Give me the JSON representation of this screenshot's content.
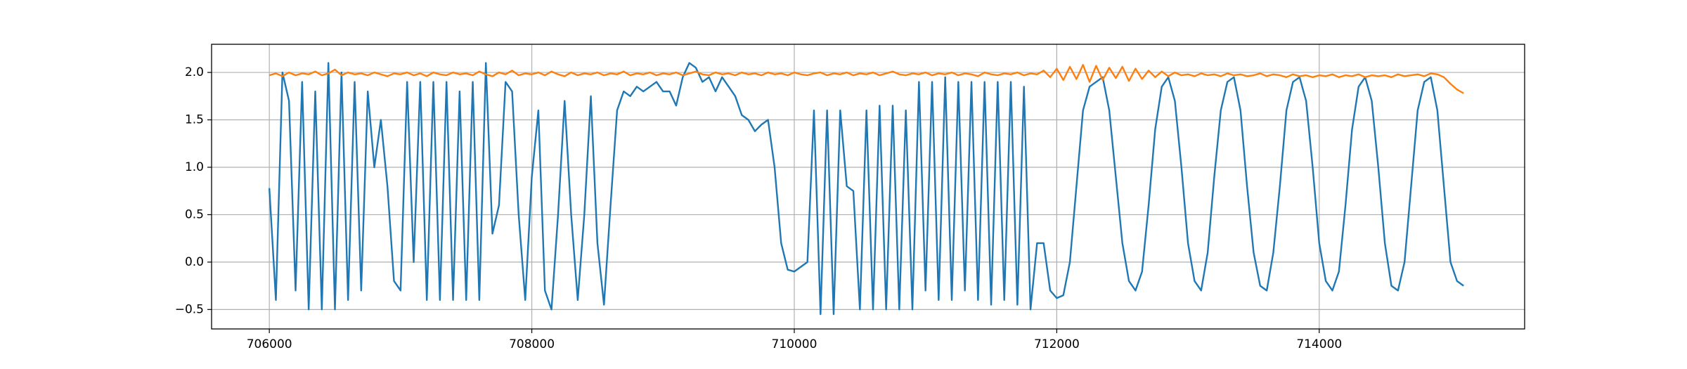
{
  "chart_data": {
    "type": "line",
    "x": [
      706000,
      706050,
      706100,
      706150,
      706200,
      706250,
      706300,
      706350,
      706400,
      706450,
      706500,
      706550,
      706600,
      706650,
      706700,
      706750,
      706800,
      706850,
      706900,
      706950,
      707000,
      707050,
      707100,
      707150,
      707200,
      707250,
      707300,
      707350,
      707400,
      707450,
      707500,
      707550,
      707600,
      707650,
      707700,
      707750,
      707800,
      707850,
      707900,
      707950,
      708000,
      708050,
      708100,
      708150,
      708200,
      708250,
      708300,
      708350,
      708400,
      708450,
      708500,
      708550,
      708600,
      708650,
      708700,
      708750,
      708800,
      708850,
      708900,
      708950,
      709000,
      709050,
      709100,
      709150,
      709200,
      709250,
      709300,
      709350,
      709400,
      709450,
      709500,
      709550,
      709600,
      709650,
      709700,
      709750,
      709800,
      709850,
      709900,
      709950,
      710000,
      710050,
      710100,
      710150,
      710200,
      710250,
      710300,
      710350,
      710400,
      710450,
      710500,
      710550,
      710600,
      710650,
      710700,
      710750,
      710800,
      710850,
      710900,
      710950,
      711000,
      711050,
      711100,
      711150,
      711200,
      711250,
      711300,
      711350,
      711400,
      711450,
      711500,
      711550,
      711600,
      711650,
      711700,
      711750,
      711800,
      711850,
      711900,
      711950,
      712000,
      712050,
      712100,
      712150,
      712200,
      712250,
      712300,
      712350,
      712400,
      712450,
      712500,
      712550,
      712600,
      712650,
      712700,
      712750,
      712800,
      712850,
      712900,
      712950,
      713000,
      713050,
      713100,
      713150,
      713200,
      713250,
      713300,
      713350,
      713400,
      713450,
      713500,
      713550,
      713600,
      713650,
      713700,
      713750,
      713800,
      713850,
      713900,
      713950,
      714000,
      714050,
      714100,
      714150,
      714200,
      714250,
      714300,
      714350,
      714400,
      714450,
      714500,
      714550,
      714600,
      714650,
      714700,
      714750,
      714800,
      714850,
      714900,
      714950,
      715000,
      715050,
      715100
    ],
    "series": [
      {
        "color": "#1f77b4",
        "values": [
          0.78,
          -0.4,
          2.0,
          1.7,
          -0.3,
          1.9,
          -0.5,
          1.8,
          -0.5,
          2.1,
          -0.5,
          2.0,
          -0.4,
          1.9,
          -0.3,
          1.8,
          1.0,
          1.5,
          0.8,
          -0.2,
          -0.3,
          1.9,
          0.0,
          1.9,
          -0.4,
          1.9,
          -0.4,
          1.9,
          -0.4,
          1.8,
          -0.4,
          1.9,
          -0.4,
          2.1,
          0.3,
          0.6,
          1.9,
          1.8,
          0.5,
          -0.4,
          0.9,
          1.6,
          -0.3,
          -0.5,
          0.5,
          1.7,
          0.5,
          -0.4,
          0.5,
          1.75,
          0.2,
          -0.45,
          0.6,
          1.6,
          1.8,
          1.75,
          1.85,
          1.8,
          1.85,
          1.9,
          1.8,
          1.8,
          1.65,
          1.95,
          2.1,
          2.05,
          1.9,
          1.95,
          1.8,
          1.95,
          1.85,
          1.75,
          1.55,
          1.5,
          1.38,
          1.45,
          1.5,
          1.0,
          0.2,
          -0.08,
          -0.1,
          -0.05,
          0.0,
          1.6,
          -0.55,
          1.6,
          -0.55,
          1.6,
          0.8,
          0.75,
          -0.5,
          1.6,
          -0.5,
          1.65,
          -0.5,
          1.65,
          -0.5,
          1.6,
          -0.5,
          1.9,
          -0.3,
          1.9,
          -0.4,
          1.95,
          -0.4,
          1.9,
          -0.3,
          1.9,
          -0.4,
          1.9,
          -0.45,
          1.9,
          -0.4,
          1.9,
          -0.45,
          1.85,
          -0.5,
          0.2,
          0.2,
          -0.3,
          -0.38,
          -0.35,
          0.0,
          0.8,
          1.6,
          1.85,
          1.9,
          1.95,
          1.6,
          0.9,
          0.2,
          -0.2,
          -0.3,
          -0.1,
          0.6,
          1.4,
          1.85,
          1.95,
          1.7,
          1.0,
          0.2,
          -0.2,
          -0.3,
          0.1,
          0.9,
          1.6,
          1.9,
          1.95,
          1.6,
          0.8,
          0.1,
          -0.25,
          -0.3,
          0.1,
          0.8,
          1.6,
          1.9,
          1.95,
          1.7,
          1.0,
          0.2,
          -0.2,
          -0.3,
          -0.1,
          0.6,
          1.4,
          1.85,
          1.95,
          1.7,
          1.0,
          0.2,
          -0.25,
          -0.3,
          0.0,
          0.8,
          1.6,
          1.9,
          1.95,
          1.6,
          0.8,
          0.0,
          -0.2,
          -0.25
        ]
      },
      {
        "color": "#ff7f0e",
        "values": [
          1.97,
          1.99,
          1.96,
          2.0,
          1.97,
          1.99,
          1.98,
          2.01,
          1.97,
          1.99,
          2.03,
          1.97,
          2.0,
          1.98,
          1.99,
          1.97,
          2.0,
          1.98,
          1.96,
          1.99,
          1.98,
          2.0,
          1.97,
          1.99,
          1.96,
          2.0,
          1.98,
          1.97,
          2.0,
          1.98,
          1.99,
          1.97,
          2.01,
          1.98,
          1.96,
          2.0,
          1.98,
          2.02,
          1.97,
          1.99,
          1.98,
          2.0,
          1.97,
          2.01,
          1.98,
          1.96,
          2.0,
          1.97,
          1.99,
          1.98,
          2.0,
          1.97,
          1.99,
          1.98,
          2.01,
          1.97,
          1.99,
          1.98,
          2.0,
          1.97,
          1.99,
          1.98,
          2.0,
          1.97,
          1.99,
          2.01,
          1.98,
          1.97,
          2.0,
          1.98,
          1.99,
          1.97,
          2.0,
          1.98,
          1.99,
          1.97,
          2.0,
          1.98,
          1.99,
          1.97,
          2.0,
          1.98,
          1.97,
          1.99,
          2.0,
          1.97,
          1.99,
          1.98,
          2.0,
          1.97,
          1.99,
          1.98,
          2.0,
          1.97,
          1.99,
          2.01,
          1.98,
          1.97,
          1.99,
          1.98,
          2.0,
          1.97,
          1.99,
          1.98,
          2.0,
          1.97,
          1.99,
          1.98,
          1.96,
          2.0,
          1.98,
          1.97,
          1.99,
          1.98,
          2.0,
          1.97,
          1.99,
          1.98,
          2.02,
          1.95,
          2.04,
          1.92,
          2.06,
          1.93,
          2.08,
          1.9,
          2.07,
          1.92,
          2.05,
          1.94,
          2.06,
          1.91,
          2.04,
          1.93,
          2.02,
          1.95,
          2.01,
          1.96,
          2.0,
          1.97,
          1.98,
          1.96,
          1.99,
          1.97,
          1.98,
          1.96,
          1.99,
          1.97,
          1.98,
          1.96,
          1.97,
          1.99,
          1.96,
          1.98,
          1.97,
          1.95,
          1.98,
          1.96,
          1.97,
          1.95,
          1.97,
          1.96,
          1.98,
          1.95,
          1.97,
          1.96,
          1.98,
          1.95,
          1.97,
          1.96,
          1.97,
          1.95,
          1.98,
          1.96,
          1.97,
          1.98,
          1.96,
          1.99,
          1.98,
          1.95,
          1.88,
          1.82,
          1.78
        ]
      }
    ],
    "xlim": [
      705560,
      715565
    ],
    "xticks": [
      706000,
      708000,
      710000,
      712000,
      714000
    ],
    "ylim": [
      -0.705,
      2.297
    ],
    "yticks": [
      {
        "value": -0.5,
        "label": "−0.5"
      },
      {
        "value": 0,
        "label": "0.0"
      },
      {
        "value": 0.5,
        "label": "0.5"
      },
      {
        "value": 1,
        "label": "1.0"
      },
      {
        "value": 1.5,
        "label": "1.5"
      },
      {
        "value": 2,
        "label": "2.0"
      }
    ],
    "grid": true
  }
}
